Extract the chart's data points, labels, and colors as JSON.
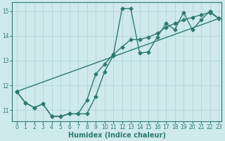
{
  "xlabel": "Humidex (Indice chaleur)",
  "bg_color": "#ceeaed",
  "line_color": "#2d7a6e",
  "grid_color": "#b0d0d4",
  "xlim": [
    -0.5,
    23.3
  ],
  "ylim": [
    10.55,
    15.35
  ],
  "xticks": [
    0,
    1,
    2,
    3,
    4,
    5,
    6,
    7,
    8,
    9,
    10,
    11,
    12,
    13,
    14,
    15,
    16,
    17,
    18,
    19,
    20,
    21,
    22,
    23
  ],
  "yticks": [
    11,
    12,
    13,
    14,
    15
  ],
  "line_wavy_x": [
    0,
    1,
    2,
    3,
    4,
    5,
    6,
    7,
    8,
    9,
    10,
    11,
    12,
    13,
    14,
    15,
    16,
    17,
    18,
    19,
    20,
    21,
    22,
    23
  ],
  "line_wavy_y": [
    11.75,
    11.3,
    11.1,
    11.25,
    10.75,
    10.75,
    10.85,
    10.85,
    10.85,
    11.55,
    12.55,
    13.2,
    15.1,
    15.1,
    13.3,
    13.35,
    13.95,
    14.5,
    14.25,
    14.95,
    14.25,
    14.65,
    15.0,
    14.7
  ],
  "line_smooth_x": [
    0,
    1,
    2,
    3,
    4,
    5,
    6,
    7,
    8,
    9,
    10,
    11,
    12,
    13,
    14,
    15,
    16,
    17,
    18,
    19,
    20,
    21,
    22,
    23
  ],
  "line_smooth_y": [
    11.75,
    11.3,
    11.1,
    11.25,
    10.75,
    10.75,
    10.85,
    10.85,
    11.4,
    12.45,
    12.85,
    13.25,
    13.55,
    13.85,
    13.85,
    13.95,
    14.1,
    14.35,
    14.5,
    14.65,
    14.75,
    14.85,
    14.95,
    14.7
  ],
  "line_trend_x": [
    0,
    23
  ],
  "line_trend_y": [
    11.75,
    14.7
  ],
  "marker": "D",
  "markersize": 2.5,
  "linewidth": 1.0,
  "tick_fontsize": 5.5,
  "label_fontsize": 7.0
}
